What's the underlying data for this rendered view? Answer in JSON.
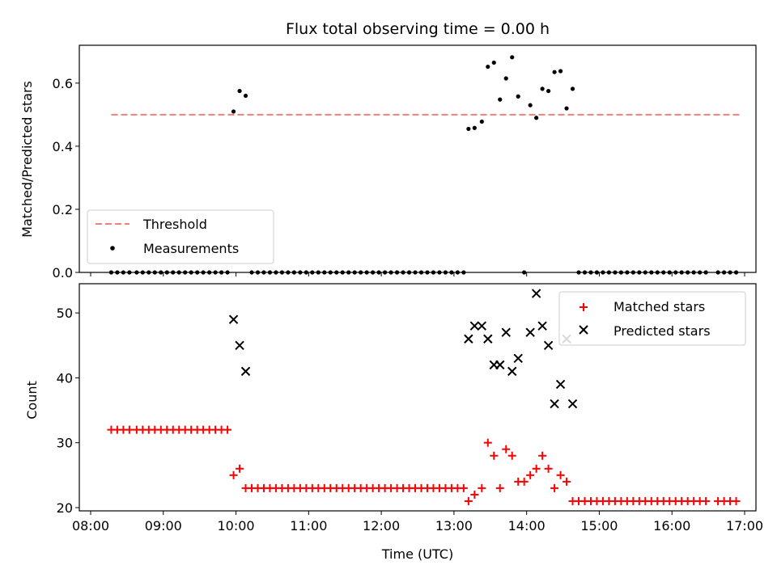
{
  "chart_data": [
    {
      "type": "scatter",
      "title": "Flux total observing time = 0.00 h",
      "xlabel": "",
      "ylabel": "Matched/Predicted stars",
      "xlim": [
        "08:00",
        "17:00"
      ],
      "ylim": [
        0,
        0.72
      ],
      "yticks": [
        0.0,
        0.2,
        0.4,
        0.6
      ],
      "ytick_labels": [
        "0.0",
        "0.2",
        "0.4",
        "0.6"
      ],
      "legend": {
        "position": "lower-left",
        "entries": [
          "Threshold",
          "Measurements"
        ]
      },
      "threshold": {
        "name": "Threshold",
        "value": 0.5,
        "x_range": [
          "08:17",
          "16:56"
        ],
        "color": "#f08080"
      },
      "measurements": {
        "name": "Measurements",
        "color": "#000000",
        "points": [
          [
            "08:17",
            0
          ],
          [
            "08:22",
            0
          ],
          [
            "08:27",
            0
          ],
          [
            "08:32",
            0
          ],
          [
            "08:38",
            0
          ],
          [
            "08:43",
            0
          ],
          [
            "08:48",
            0
          ],
          [
            "08:53",
            0
          ],
          [
            "08:58",
            0
          ],
          [
            "09:03",
            0
          ],
          [
            "09:08",
            0
          ],
          [
            "09:13",
            0
          ],
          [
            "09:18",
            0
          ],
          [
            "09:23",
            0
          ],
          [
            "09:28",
            0
          ],
          [
            "09:33",
            0
          ],
          [
            "09:38",
            0
          ],
          [
            "09:43",
            0
          ],
          [
            "09:48",
            0
          ],
          [
            "09:53",
            0
          ],
          [
            "09:58",
            0.51
          ],
          [
            "10:03",
            0.575
          ],
          [
            "10:08",
            0.56
          ],
          [
            "10:13",
            0
          ],
          [
            "10:18",
            0
          ],
          [
            "10:23",
            0
          ],
          [
            "10:28",
            0
          ],
          [
            "10:33",
            0
          ],
          [
            "10:38",
            0
          ],
          [
            "10:43",
            0
          ],
          [
            "10:48",
            0
          ],
          [
            "10:53",
            0
          ],
          [
            "10:58",
            0
          ],
          [
            "11:03",
            0
          ],
          [
            "11:08",
            0
          ],
          [
            "11:13",
            0
          ],
          [
            "11:18",
            0
          ],
          [
            "11:23",
            0
          ],
          [
            "11:28",
            0
          ],
          [
            "11:33",
            0
          ],
          [
            "11:38",
            0
          ],
          [
            "11:43",
            0
          ],
          [
            "11:48",
            0
          ],
          [
            "11:53",
            0
          ],
          [
            "11:58",
            0
          ],
          [
            "12:03",
            0
          ],
          [
            "12:08",
            0
          ],
          [
            "12:13",
            0
          ],
          [
            "12:18",
            0
          ],
          [
            "12:23",
            0
          ],
          [
            "12:28",
            0
          ],
          [
            "12:33",
            0
          ],
          [
            "12:38",
            0
          ],
          [
            "12:43",
            0
          ],
          [
            "12:48",
            0
          ],
          [
            "12:53",
            0
          ],
          [
            "12:58",
            0
          ],
          [
            "13:03",
            0
          ],
          [
            "13:08",
            0
          ],
          [
            "13:12",
            0.455
          ],
          [
            "13:17",
            0.458
          ],
          [
            "13:23",
            0.478
          ],
          [
            "13:28",
            0.652
          ],
          [
            "13:33",
            0.665
          ],
          [
            "13:38",
            0.548
          ],
          [
            "13:43",
            0.615
          ],
          [
            "13:48",
            0.682
          ],
          [
            "13:53",
            0.558
          ],
          [
            "13:58",
            0
          ],
          [
            "14:03",
            0.53
          ],
          [
            "14:08",
            0.49
          ],
          [
            "14:13",
            0.582
          ],
          [
            "14:18",
            0.575
          ],
          [
            "14:23",
            0.635
          ],
          [
            "14:28",
            0.638
          ],
          [
            "14:33",
            0.52
          ],
          [
            "14:38",
            0.582
          ],
          [
            "14:43",
            0
          ],
          [
            "14:48",
            0
          ],
          [
            "14:53",
            0
          ],
          [
            "14:58",
            0
          ],
          [
            "15:03",
            0
          ],
          [
            "15:08",
            0
          ],
          [
            "15:13",
            0
          ],
          [
            "15:18",
            0
          ],
          [
            "15:23",
            0
          ],
          [
            "15:28",
            0
          ],
          [
            "15:33",
            0
          ],
          [
            "15:38",
            0
          ],
          [
            "15:43",
            0
          ],
          [
            "15:48",
            0
          ],
          [
            "15:53",
            0
          ],
          [
            "15:58",
            0
          ],
          [
            "16:03",
            0
          ],
          [
            "16:08",
            0
          ],
          [
            "16:13",
            0
          ],
          [
            "16:18",
            0
          ],
          [
            "16:23",
            0
          ],
          [
            "16:28",
            0
          ],
          [
            "16:38",
            0
          ],
          [
            "16:43",
            0
          ],
          [
            "16:48",
            0
          ],
          [
            "16:53",
            0
          ]
        ]
      }
    },
    {
      "type": "scatter",
      "title": "",
      "xlabel": "Time (UTC)",
      "ylabel": "Count",
      "xlim": [
        "08:00",
        "17:00"
      ],
      "ylim": [
        19.5,
        54.5
      ],
      "xticks": [
        "08:00",
        "09:00",
        "10:00",
        "11:00",
        "12:00",
        "13:00",
        "14:00",
        "15:00",
        "16:00",
        "17:00"
      ],
      "yticks": [
        20,
        30,
        40,
        50
      ],
      "ytick_labels": [
        "20",
        "30",
        "40",
        "50"
      ],
      "legend": {
        "position": "upper-right",
        "entries": [
          "Matched stars",
          "Predicted stars"
        ]
      },
      "matched": {
        "name": "Matched stars",
        "color": "#ff0000",
        "points": [
          [
            "08:17",
            32
          ],
          [
            "08:22",
            32
          ],
          [
            "08:27",
            32
          ],
          [
            "08:32",
            32
          ],
          [
            "08:38",
            32
          ],
          [
            "08:43",
            32
          ],
          [
            "08:48",
            32
          ],
          [
            "08:53",
            32
          ],
          [
            "08:58",
            32
          ],
          [
            "09:03",
            32
          ],
          [
            "09:08",
            32
          ],
          [
            "09:13",
            32
          ],
          [
            "09:18",
            32
          ],
          [
            "09:23",
            32
          ],
          [
            "09:28",
            32
          ],
          [
            "09:33",
            32
          ],
          [
            "09:38",
            32
          ],
          [
            "09:43",
            32
          ],
          [
            "09:48",
            32
          ],
          [
            "09:53",
            32
          ],
          [
            "09:58",
            25
          ],
          [
            "10:03",
            26
          ],
          [
            "10:08",
            23
          ],
          [
            "10:13",
            23
          ],
          [
            "10:18",
            23
          ],
          [
            "10:23",
            23
          ],
          [
            "10:28",
            23
          ],
          [
            "10:33",
            23
          ],
          [
            "10:38",
            23
          ],
          [
            "10:43",
            23
          ],
          [
            "10:48",
            23
          ],
          [
            "10:53",
            23
          ],
          [
            "10:58",
            23
          ],
          [
            "11:03",
            23
          ],
          [
            "11:08",
            23
          ],
          [
            "11:13",
            23
          ],
          [
            "11:18",
            23
          ],
          [
            "11:23",
            23
          ],
          [
            "11:28",
            23
          ],
          [
            "11:33",
            23
          ],
          [
            "11:38",
            23
          ],
          [
            "11:43",
            23
          ],
          [
            "11:48",
            23
          ],
          [
            "11:53",
            23
          ],
          [
            "11:58",
            23
          ],
          [
            "12:03",
            23
          ],
          [
            "12:08",
            23
          ],
          [
            "12:13",
            23
          ],
          [
            "12:18",
            23
          ],
          [
            "12:23",
            23
          ],
          [
            "12:28",
            23
          ],
          [
            "12:33",
            23
          ],
          [
            "12:38",
            23
          ],
          [
            "12:43",
            23
          ],
          [
            "12:48",
            23
          ],
          [
            "12:53",
            23
          ],
          [
            "12:58",
            23
          ],
          [
            "13:03",
            23
          ],
          [
            "13:08",
            23
          ],
          [
            "13:12",
            21
          ],
          [
            "13:17",
            22
          ],
          [
            "13:23",
            23
          ],
          [
            "13:28",
            30
          ],
          [
            "13:33",
            28
          ],
          [
            "13:38",
            23
          ],
          [
            "13:43",
            29
          ],
          [
            "13:48",
            28
          ],
          [
            "13:53",
            24
          ],
          [
            "13:58",
            24
          ],
          [
            "14:03",
            25
          ],
          [
            "14:08",
            26
          ],
          [
            "14:13",
            28
          ],
          [
            "14:18",
            26
          ],
          [
            "14:23",
            23
          ],
          [
            "14:28",
            25
          ],
          [
            "14:33",
            24
          ],
          [
            "14:38",
            21
          ],
          [
            "14:43",
            21
          ],
          [
            "14:48",
            21
          ],
          [
            "14:53",
            21
          ],
          [
            "14:58",
            21
          ],
          [
            "15:03",
            21
          ],
          [
            "15:08",
            21
          ],
          [
            "15:13",
            21
          ],
          [
            "15:18",
            21
          ],
          [
            "15:23",
            21
          ],
          [
            "15:28",
            21
          ],
          [
            "15:33",
            21
          ],
          [
            "15:38",
            21
          ],
          [
            "15:43",
            21
          ],
          [
            "15:48",
            21
          ],
          [
            "15:53",
            21
          ],
          [
            "15:58",
            21
          ],
          [
            "16:03",
            21
          ],
          [
            "16:08",
            21
          ],
          [
            "16:13",
            21
          ],
          [
            "16:18",
            21
          ],
          [
            "16:23",
            21
          ],
          [
            "16:28",
            21
          ],
          [
            "16:38",
            21
          ],
          [
            "16:43",
            21
          ],
          [
            "16:48",
            21
          ],
          [
            "16:53",
            21
          ]
        ]
      },
      "predicted": {
        "name": "Predicted stars",
        "color": "#000000",
        "points": [
          [
            "09:58",
            49
          ],
          [
            "10:03",
            45
          ],
          [
            "10:08",
            41
          ],
          [
            "13:12",
            46
          ],
          [
            "13:17",
            48
          ],
          [
            "13:23",
            48
          ],
          [
            "13:28",
            46
          ],
          [
            "13:33",
            42
          ],
          [
            "13:38",
            42
          ],
          [
            "13:43",
            47
          ],
          [
            "13:48",
            41
          ],
          [
            "13:53",
            43
          ],
          [
            "14:03",
            47
          ],
          [
            "14:08",
            53
          ],
          [
            "14:13",
            48
          ],
          [
            "14:18",
            45
          ],
          [
            "14:23",
            36
          ],
          [
            "14:28",
            39
          ],
          [
            "14:33",
            46
          ],
          [
            "14:38",
            36
          ]
        ]
      }
    }
  ]
}
